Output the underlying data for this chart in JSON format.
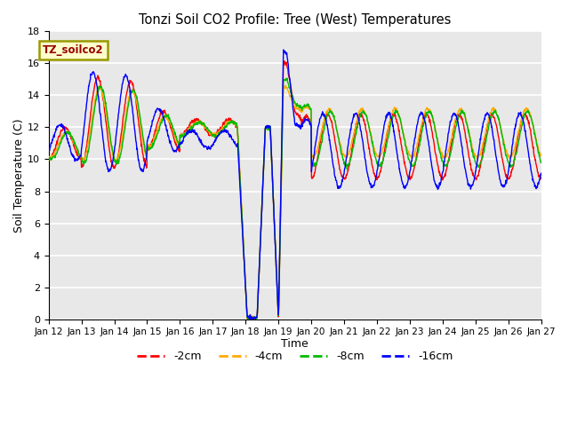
{
  "title": "Tonzi Soil CO2 Profile: Tree (West) Temperatures",
  "xlabel": "Time",
  "ylabel": "Soil Temperature (C)",
  "ylim": [
    0,
    18
  ],
  "series_labels": [
    "-2cm",
    "-4cm",
    "-8cm",
    "-16cm"
  ],
  "series_colors": [
    "#ff0000",
    "#ffaa00",
    "#00bb00",
    "#0000ff"
  ],
  "legend_box_text": "TZ_soilco2",
  "legend_box_textcolor": "#990000",
  "legend_box_facecolor": "#ffffcc",
  "legend_box_edgecolor": "#999900",
  "tick_dates": [
    "Jan 12",
    "Jan 13",
    "Jan 14",
    "Jan 15",
    "Jan 16",
    "Jan 17",
    "Jan 18",
    "Jan 19",
    "Jan 20",
    "Jan 21",
    "Jan 22",
    "Jan 23",
    "Jan 24",
    "Jan 25",
    "Jan 26",
    "Jan 27"
  ],
  "grid_color": "#d8d8d8",
  "axes_bg": "#e8e8e8",
  "n_days": 15
}
